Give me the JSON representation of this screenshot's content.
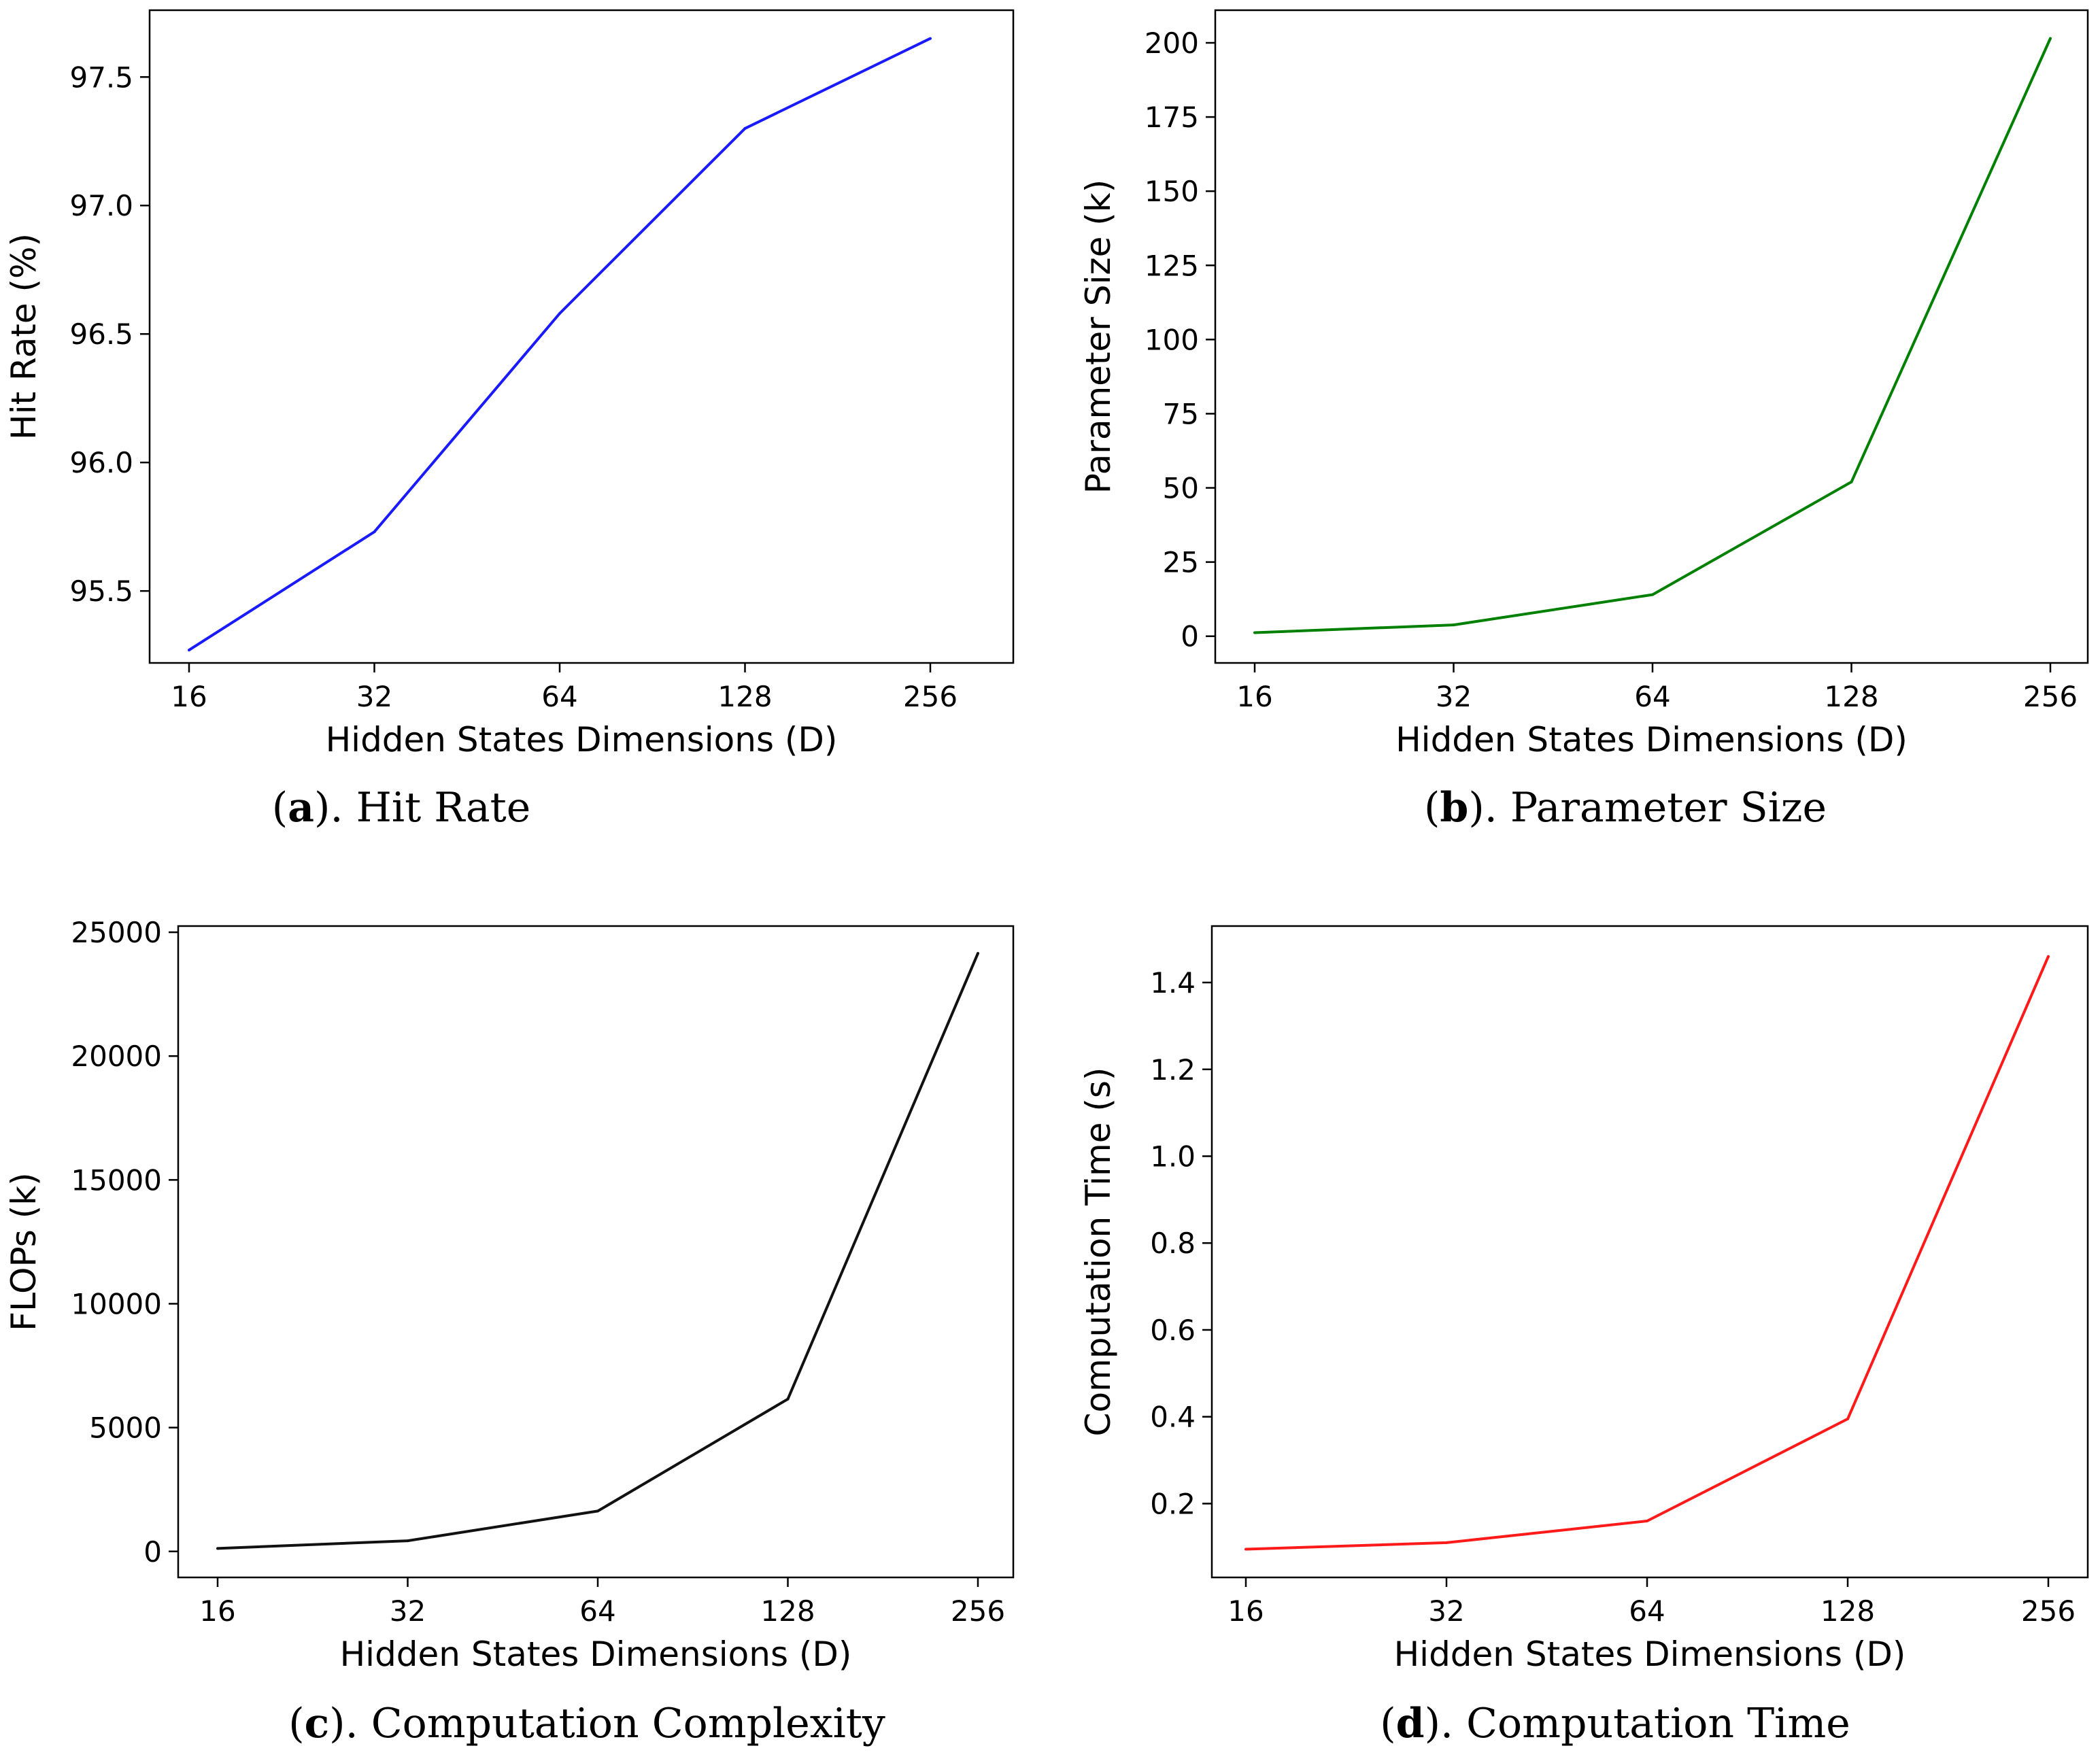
{
  "chart_data": [
    {
      "type": "line",
      "id": "a",
      "caption_letter": "a",
      "caption_text": "). Hit Rate",
      "xlabel": "Hidden States Dimensions (D)",
      "ylabel": "Hit Rate (%)",
      "x_tick_labels": [
        "16",
        "32",
        "64",
        "128",
        "256"
      ],
      "y_ticks": [
        95.5,
        96.0,
        96.5,
        97.0,
        97.5
      ],
      "y_tick_labels": [
        "95.5",
        "96.0",
        "96.5",
        "97.0",
        "97.5"
      ],
      "ylim": [
        95.22,
        97.76
      ],
      "series": [
        {
          "name": "Hit Rate",
          "color": "#1a1aff",
          "values": [
            95.27,
            95.73,
            96.58,
            97.3,
            97.65
          ]
        }
      ]
    },
    {
      "type": "line",
      "id": "b",
      "caption_letter": "b",
      "caption_text": "). Parameter Size",
      "xlabel": "Hidden States Dimensions (D)",
      "ylabel": "Parameter Size (k)",
      "x_tick_labels": [
        "16",
        "32",
        "64",
        "128",
        "256"
      ],
      "y_ticks": [
        0,
        25,
        50,
        75,
        100,
        125,
        150,
        175,
        200
      ],
      "y_tick_labels": [
        "0",
        "25",
        "50",
        "75",
        "100",
        "125",
        "150",
        "175",
        "200"
      ],
      "ylim": [
        -9,
        211
      ],
      "series": [
        {
          "name": "Parameter Size",
          "color": "#008000",
          "values": [
            1.2,
            3.8,
            14,
            52,
            201.5
          ]
        }
      ]
    },
    {
      "type": "line",
      "id": "c",
      "caption_letter": "c",
      "caption_text": "). Computation Complexity",
      "xlabel": "Hidden States Dimensions (D)",
      "ylabel": "FLOPs (k)",
      "x_tick_labels": [
        "16",
        "32",
        "64",
        "128",
        "256"
      ],
      "y_ticks": [
        0,
        5000,
        10000,
        15000,
        20000,
        25000
      ],
      "y_tick_labels": [
        "0",
        "5000",
        "10000",
        "15000",
        "20000",
        "25000"
      ],
      "ylim": [
        -1050,
        25250
      ],
      "series": [
        {
          "name": "FLOPs",
          "color": "#111111",
          "values": [
            120,
            430,
            1630,
            6150,
            24150
          ]
        }
      ]
    },
    {
      "type": "line",
      "id": "d",
      "caption_letter": "d",
      "caption_text": "). Computation Time",
      "xlabel": "Hidden States Dimensions (D)",
      "ylabel": "Computation Time (s)",
      "x_tick_labels": [
        "16",
        "32",
        "64",
        "128",
        "256"
      ],
      "y_ticks": [
        0.2,
        0.4,
        0.6,
        0.8,
        1.0,
        1.2,
        1.4
      ],
      "y_tick_labels": [
        "0.2",
        "0.4",
        "0.6",
        "0.8",
        "1.0",
        "1.2",
        "1.4"
      ],
      "ylim": [
        0.03,
        1.53
      ],
      "series": [
        {
          "name": "Computation Time",
          "color": "#ff1a1a",
          "values": [
            0.095,
            0.11,
            0.16,
            0.395,
            1.46
          ]
        }
      ]
    }
  ]
}
